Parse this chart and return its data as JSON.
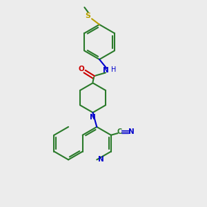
{
  "bg_color": "#ececec",
  "bond_color": "#2a7a2a",
  "n_color": "#0000cc",
  "o_color": "#cc0000",
  "s_color": "#b8a000",
  "lw": 1.5,
  "lw_thin": 1.0,
  "figsize": [
    3.0,
    3.0
  ],
  "dpi": 100,
  "xlim": [
    0,
    10
  ],
  "ylim": [
    0,
    10
  ],
  "font_size": 7.5
}
